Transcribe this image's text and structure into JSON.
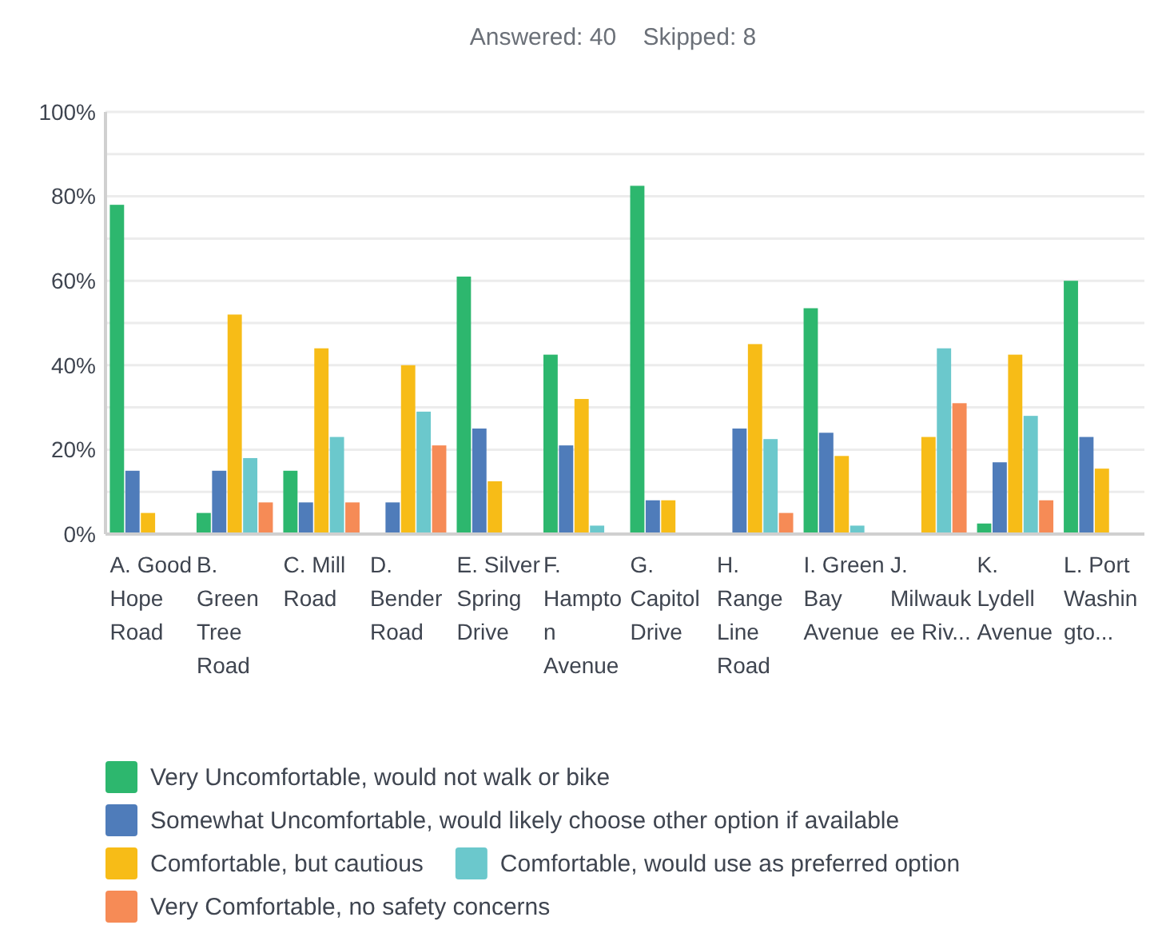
{
  "chart_data": {
    "type": "bar",
    "title": "Answered: 40    Skipped: 8",
    "categories": [
      "A. Good Hope Road",
      "B. Green Tree Road",
      "C. Mill Road",
      "D. Bender Road",
      "E. Silver Spring Drive",
      "F. Hampton Avenue",
      "G. Capitol Drive",
      "H. Range Line Road",
      "I. Green Bay Avenue",
      "J. Milwaukee Riv...",
      "K. Lydell Avenue",
      "L. Port Washingto..."
    ],
    "series": [
      {
        "name": "Very Uncomfortable, would not walk or bike",
        "color": "#2db76e",
        "values": [
          78,
          5,
          15,
          0,
          61,
          42.5,
          82.5,
          0,
          53.5,
          0,
          2.5,
          60
        ]
      },
      {
        "name": "Somewhat Uncomfortable, would likely choose other option if available",
        "color": "#4f7cba",
        "values": [
          15,
          15,
          7.5,
          7.5,
          25,
          21,
          8,
          25,
          24,
          0,
          17,
          23
        ]
      },
      {
        "name": "Comfortable, but cautious",
        "color": "#f7bc17",
        "values": [
          5,
          52,
          44,
          40,
          12.5,
          32,
          8,
          45,
          18.5,
          23,
          42.5,
          15.5
        ]
      },
      {
        "name": "Comfortable, would use as preferred option",
        "color": "#6bc8cc",
        "values": [
          0,
          18,
          23,
          29,
          0,
          2,
          0,
          22.5,
          2,
          44,
          28,
          0
        ]
      },
      {
        "name": "Very Comfortable, no safety concerns",
        "color": "#f68b56",
        "values": [
          0,
          7.5,
          7.5,
          21,
          0,
          0,
          0,
          5,
          0,
          31,
          8,
          0
        ]
      }
    ],
    "ylim": [
      0,
      100
    ],
    "yticks": [
      {
        "value": 0,
        "label": "0%"
      },
      {
        "value": 10,
        "label": null
      },
      {
        "value": 20,
        "label": "20%"
      },
      {
        "value": 30,
        "label": null
      },
      {
        "value": 40,
        "label": "40%"
      },
      {
        "value": 50,
        "label": null
      },
      {
        "value": 60,
        "label": "60%"
      },
      {
        "value": 70,
        "label": null
      },
      {
        "value": 80,
        "label": "80%"
      },
      {
        "value": 90,
        "label": null
      },
      {
        "value": 100,
        "label": "100%"
      }
    ],
    "grid": true,
    "legend": "bottom"
  }
}
